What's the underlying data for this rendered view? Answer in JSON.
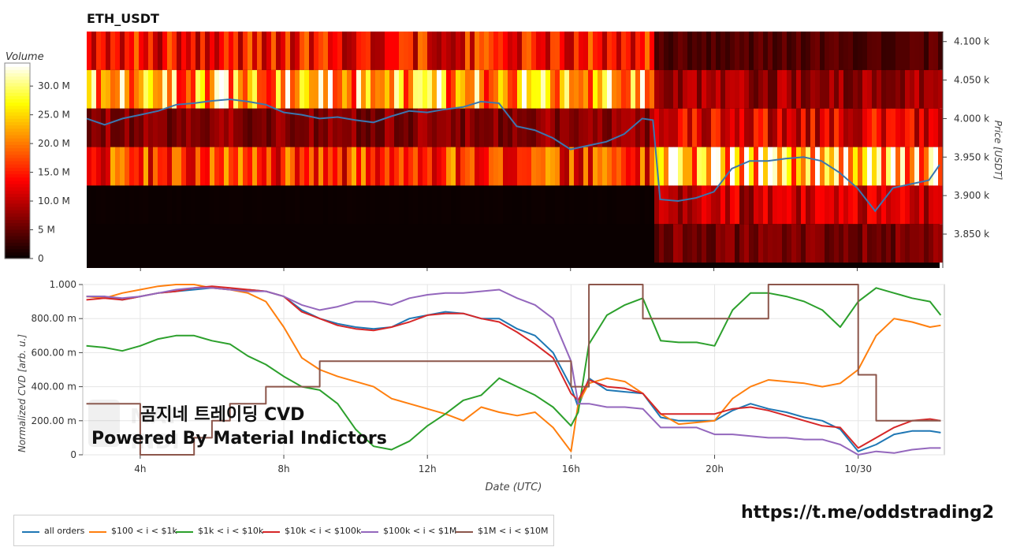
{
  "title": "ETH_USDT",
  "watermark_line1": "곰지네 트레이딩 CVD",
  "watermark_line2": "Powered By Material Indictors",
  "url": "https://t.me/oddstrading2",
  "heatmap_bounds": {
    "x0": 110,
    "x1": 1192,
    "y0": 41,
    "y1": 340
  },
  "cvd_bounds": {
    "x0": 105,
    "x1": 1198,
    "y0": 361,
    "y1": 577
  },
  "colorbar_bounds": {
    "x0": 6,
    "x1": 38,
    "y0": 80,
    "y1": 328
  },
  "colors": {
    "all_orders": "#1f77b4",
    "s100": "#ff7f0e",
    "s1k": "#2ca02c",
    "s10k": "#d62728",
    "s100k": "#9467bd",
    "s1m": "#8c564b",
    "price_line": "#3b76af"
  },
  "chart_data": [
    {
      "type": "heatmap",
      "title": "ETH_USDT",
      "colorbar_label": "Volume",
      "colorbar_ticks": [
        "0",
        "5 M",
        "10.0 M",
        "15.0 M",
        "20.0 M",
        "25.0 M",
        "30.0 M"
      ],
      "colorbar_max": 34,
      "ylabel": "Price [USDT]",
      "y_ticks": [
        "3.850 k",
        "3.900 k",
        "3.950 k",
        "4.000 k",
        "4.050 k",
        "4.100 k"
      ],
      "y_tick_values": [
        3850,
        3900,
        3950,
        4000,
        4050,
        4100
      ],
      "ylim": [
        3806,
        4112
      ],
      "price_bands": [
        4088,
        4038,
        3988,
        3938,
        3888,
        3838
      ],
      "band_half": 25,
      "x_range_hours": [
        2.5,
        26.3
      ],
      "segments": [
        {
          "t0": 2.5,
          "t1": 18.4,
          "band_levels": [
            14,
            24,
            7,
            16,
            0.2,
            0
          ]
        },
        {
          "t0": 18.4,
          "t1": 26.3,
          "band_levels": [
            4,
            8,
            12,
            26,
            10,
            6
          ]
        }
      ],
      "price_series": {
        "name": "price",
        "x": [
          2.5,
          3.0,
          3.5,
          4.0,
          4.5,
          5.0,
          5.5,
          6.0,
          6.5,
          7.0,
          7.5,
          8.0,
          8.5,
          9.0,
          9.5,
          10.0,
          10.5,
          11.0,
          11.5,
          12.0,
          12.5,
          13.0,
          13.5,
          14.0,
          14.5,
          15.0,
          15.5,
          16.0,
          16.5,
          17.0,
          17.5,
          18.0,
          18.3,
          18.5,
          19.0,
          19.5,
          20.0,
          20.5,
          21.0,
          21.5,
          22.0,
          22.5,
          23.0,
          23.5,
          24.0,
          24.5,
          25.0,
          25.5,
          26.0,
          26.3
        ],
        "y": [
          4000,
          3992,
          4000,
          4005,
          4010,
          4018,
          4020,
          4023,
          4025,
          4022,
          4018,
          4008,
          4005,
          4000,
          4002,
          3998,
          3995,
          4003,
          4010,
          4008,
          4012,
          4015,
          4022,
          4020,
          3990,
          3985,
          3975,
          3960,
          3965,
          3970,
          3980,
          4000,
          3998,
          3895,
          3893,
          3897,
          3905,
          3935,
          3945,
          3945,
          3948,
          3950,
          3945,
          3930,
          3910,
          3880,
          3910,
          3915,
          3920,
          3940
        ]
      },
      "x_ticks": [
        "4h",
        "8h",
        "12h",
        "16h",
        "20h",
        "10/30"
      ],
      "x_tick_values": [
        4,
        8,
        12,
        16,
        20,
        24
      ]
    },
    {
      "type": "line",
      "xlabel": "Date (UTC)",
      "ylabel": "Normalized CVD [arb. u.]",
      "y_ticks": [
        "0",
        "200.00 m",
        "400.00 m",
        "600.00 m",
        "800.00 m",
        "1.000"
      ],
      "y_tick_values": [
        0,
        0.2,
        0.4,
        0.6,
        0.8,
        1.0
      ],
      "ylim": [
        0,
        1.0
      ],
      "x_ticks": [
        "4h",
        "8h",
        "12h",
        "16h",
        "20h",
        "10/30"
      ],
      "x_tick_values": [
        4,
        8,
        12,
        16,
        20,
        24
      ],
      "xlim": [
        2.4,
        26.4
      ],
      "grid": true,
      "legend_position": "bottom",
      "x": [
        2.5,
        3.0,
        3.5,
        4.0,
        4.5,
        5.0,
        5.5,
        6.0,
        6.5,
        7.0,
        7.5,
        8.0,
        8.5,
        9.0,
        9.5,
        10.0,
        10.5,
        11.0,
        11.5,
        12.0,
        12.5,
        13.0,
        13.5,
        14.0,
        14.5,
        15.0,
        15.5,
        16.0,
        16.2,
        16.5,
        17.0,
        17.5,
        18.0,
        18.5,
        19.0,
        19.5,
        20.0,
        20.5,
        21.0,
        21.5,
        22.0,
        22.5,
        23.0,
        23.5,
        24.0,
        24.5,
        25.0,
        25.5,
        26.0,
        26.3
      ],
      "series": [
        {
          "name": "all orders",
          "key": "all_orders",
          "values": [
            0.93,
            0.93,
            0.91,
            0.93,
            0.95,
            0.96,
            0.97,
            0.98,
            0.97,
            0.97,
            0.96,
            0.93,
            0.85,
            0.8,
            0.77,
            0.75,
            0.74,
            0.75,
            0.8,
            0.82,
            0.84,
            0.83,
            0.8,
            0.8,
            0.74,
            0.7,
            0.6,
            0.4,
            0.28,
            0.45,
            0.38,
            0.37,
            0.36,
            0.22,
            0.2,
            0.2,
            0.2,
            0.26,
            0.3,
            0.27,
            0.25,
            0.22,
            0.2,
            0.15,
            0.02,
            0.06,
            0.12,
            0.14,
            0.14,
            0.13
          ]
        },
        {
          "name": "$100 < i < $1k",
          "key": "s100",
          "values": [
            0.93,
            0.92,
            0.95,
            0.97,
            0.99,
            1.0,
            1.0,
            0.98,
            0.97,
            0.95,
            0.9,
            0.75,
            0.57,
            0.5,
            0.46,
            0.43,
            0.4,
            0.33,
            0.3,
            0.27,
            0.24,
            0.2,
            0.28,
            0.25,
            0.23,
            0.25,
            0.16,
            0.02,
            0.3,
            0.42,
            0.45,
            0.43,
            0.36,
            0.24,
            0.18,
            0.19,
            0.2,
            0.33,
            0.4,
            0.44,
            0.43,
            0.42,
            0.4,
            0.42,
            0.5,
            0.7,
            0.8,
            0.78,
            0.75,
            0.76
          ]
        },
        {
          "name": "$1k < i < $10k",
          "key": "s1k",
          "values": [
            0.64,
            0.63,
            0.61,
            0.64,
            0.68,
            0.7,
            0.7,
            0.67,
            0.65,
            0.58,
            0.53,
            0.46,
            0.4,
            0.38,
            0.3,
            0.15,
            0.05,
            0.03,
            0.08,
            0.17,
            0.24,
            0.32,
            0.35,
            0.45,
            0.4,
            0.35,
            0.28,
            0.17,
            0.25,
            0.65,
            0.82,
            0.88,
            0.92,
            0.67,
            0.66,
            0.66,
            0.64,
            0.85,
            0.95,
            0.95,
            0.93,
            0.9,
            0.85,
            0.75,
            0.9,
            0.98,
            0.95,
            0.92,
            0.9,
            0.82
          ]
        },
        {
          "name": "$10k < i < $100k",
          "key": "s10k",
          "values": [
            0.91,
            0.92,
            0.91,
            0.93,
            0.95,
            0.96,
            0.98,
            0.99,
            0.98,
            0.97,
            0.96,
            0.93,
            0.84,
            0.8,
            0.76,
            0.74,
            0.73,
            0.75,
            0.78,
            0.82,
            0.83,
            0.83,
            0.8,
            0.78,
            0.72,
            0.65,
            0.57,
            0.36,
            0.32,
            0.44,
            0.4,
            0.39,
            0.36,
            0.24,
            0.24,
            0.24,
            0.24,
            0.27,
            0.28,
            0.26,
            0.23,
            0.2,
            0.17,
            0.16,
            0.04,
            0.1,
            0.16,
            0.2,
            0.21,
            0.2
          ]
        },
        {
          "name": "$100k < i < $1M",
          "key": "s100k",
          "values": [
            0.93,
            0.93,
            0.92,
            0.93,
            0.95,
            0.97,
            0.98,
            0.98,
            0.97,
            0.96,
            0.96,
            0.93,
            0.88,
            0.85,
            0.87,
            0.9,
            0.9,
            0.88,
            0.92,
            0.94,
            0.95,
            0.95,
            0.96,
            0.97,
            0.92,
            0.88,
            0.8,
            0.55,
            0.3,
            0.3,
            0.28,
            0.28,
            0.27,
            0.16,
            0.16,
            0.16,
            0.12,
            0.12,
            0.11,
            0.1,
            0.1,
            0.09,
            0.09,
            0.06,
            0.0,
            0.02,
            0.01,
            0.03,
            0.04,
            0.04
          ]
        },
        {
          "name": "$1M < i < $10M",
          "key": "s1m",
          "values": [
            0.3,
            0.3,
            0.3,
            0.0,
            0.0,
            0.0,
            0.1,
            0.2,
            0.3,
            0.3,
            0.4,
            0.4,
            0.4,
            0.55,
            0.55,
            0.55,
            0.55,
            0.55,
            0.55,
            0.55,
            0.55,
            0.55,
            0.55,
            0.55,
            0.55,
            0.55,
            0.55,
            0.4,
            0.4,
            1.0,
            1.0,
            1.0,
            0.8,
            0.8,
            0.8,
            0.8,
            0.8,
            0.8,
            0.8,
            1.0,
            1.0,
            1.0,
            1.0,
            1.0,
            0.47,
            0.2,
            0.2,
            0.2,
            0.2,
            0.2
          ]
        }
      ]
    }
  ]
}
